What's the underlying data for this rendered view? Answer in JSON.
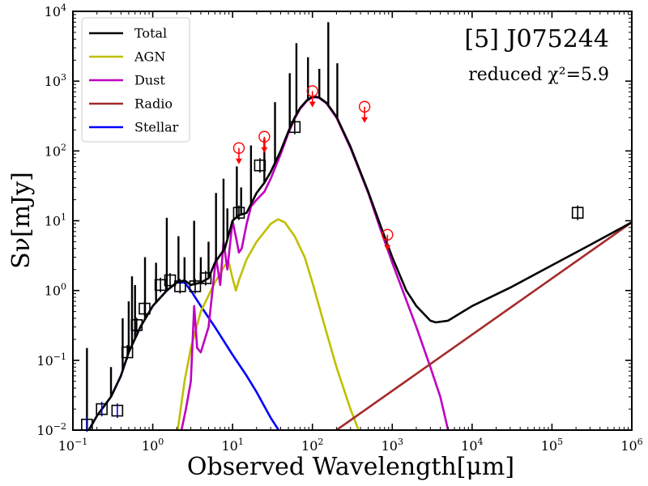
{
  "chart_data": {
    "type": "line",
    "title": "[5] J075244",
    "subtitle": "reduced χ²=5.9",
    "xlabel": "Observed Wavelength[μm]",
    "ylabel": "Sν[mJy]",
    "xscale": "log",
    "yscale": "log",
    "xlim": [
      0.1,
      1000000
    ],
    "ylim": [
      0.01,
      10000
    ],
    "x_ticks": [
      {
        "value": 0.1,
        "mant": "10",
        "exp": "−1"
      },
      {
        "value": 1,
        "mant": "10",
        "exp": "0"
      },
      {
        "value": 10,
        "mant": "10",
        "exp": "1"
      },
      {
        "value": 100,
        "mant": "10",
        "exp": "2"
      },
      {
        "value": 1000,
        "mant": "10",
        "exp": "3"
      },
      {
        "value": 10000,
        "mant": "10",
        "exp": "4"
      },
      {
        "value": 100000,
        "mant": "10",
        "exp": "5"
      },
      {
        "value": 1000000,
        "mant": "10",
        "exp": "6"
      }
    ],
    "y_ticks": [
      {
        "value": 0.01,
        "mant": "10",
        "exp": "−2"
      },
      {
        "value": 0.1,
        "mant": "10",
        "exp": "−1"
      },
      {
        "value": 1,
        "mant": "10",
        "exp": "0"
      },
      {
        "value": 10,
        "mant": "10",
        "exp": "1"
      },
      {
        "value": 100,
        "mant": "10",
        "exp": "2"
      },
      {
        "value": 1000,
        "mant": "10",
        "exp": "3"
      },
      {
        "value": 10000,
        "mant": "10",
        "exp": "4"
      }
    ],
    "legend": {
      "placement": "top-left",
      "entries": [
        {
          "name": "Total",
          "color": "#000000"
        },
        {
          "name": "AGN",
          "color": "#bfbf00"
        },
        {
          "name": "Dust",
          "color": "#bf00bf"
        },
        {
          "name": "Radio",
          "color": "#a52a2a"
        },
        {
          "name": "Stellar",
          "color": "#0000ff"
        }
      ]
    },
    "series": [
      {
        "name": "Stellar",
        "color": "#0000ff",
        "points": [
          [
            0.15,
            0.009
          ],
          [
            0.2,
            0.016
          ],
          [
            0.3,
            0.03
          ],
          [
            0.4,
            0.06
          ],
          [
            0.5,
            0.13
          ],
          [
            0.7,
            0.3
          ],
          [
            1.0,
            0.6
          ],
          [
            1.5,
            1.0
          ],
          [
            2.0,
            1.3
          ],
          [
            2.5,
            1.3
          ],
          [
            3.0,
            1.0
          ],
          [
            4.0,
            0.6
          ],
          [
            6.0,
            0.3
          ],
          [
            10.0,
            0.12
          ],
          [
            15.0,
            0.06
          ],
          [
            20.0,
            0.035
          ],
          [
            30.0,
            0.015
          ],
          [
            40.0,
            0.009
          ]
        ]
      },
      {
        "name": "AGN",
        "color": "#bfbf00",
        "points": [
          [
            2.0,
            0.008
          ],
          [
            2.5,
            0.05
          ],
          [
            3.0,
            0.15
          ],
          [
            4.0,
            0.5
          ],
          [
            6.0,
            1.3
          ],
          [
            8.0,
            2.3
          ],
          [
            9.0,
            2.5
          ],
          [
            10.0,
            1.5
          ],
          [
            11.0,
            1.0
          ],
          [
            12.0,
            1.4
          ],
          [
            15.0,
            2.8
          ],
          [
            20.0,
            5.0
          ],
          [
            30.0,
            9.0
          ],
          [
            37.0,
            10.5
          ],
          [
            45.0,
            9.5
          ],
          [
            60.0,
            6.0
          ],
          [
            80.0,
            3.0
          ],
          [
            100.0,
            1.3
          ],
          [
            150.0,
            0.25
          ],
          [
            200.0,
            0.08
          ],
          [
            300.0,
            0.02
          ],
          [
            450.0,
            0.006
          ]
        ]
      },
      {
        "name": "Dust",
        "color": "#bf00bf",
        "points": [
          [
            2.2,
            0.008
          ],
          [
            2.6,
            0.02
          ],
          [
            3.0,
            0.05
          ],
          [
            3.3,
            0.6
          ],
          [
            3.6,
            0.15
          ],
          [
            4.0,
            0.13
          ],
          [
            5.0,
            0.3
          ],
          [
            6.2,
            3.0
          ],
          [
            7.0,
            1.2
          ],
          [
            7.7,
            5.0
          ],
          [
            8.6,
            2.0
          ],
          [
            10.0,
            10.0
          ],
          [
            11.3,
            5.0
          ],
          [
            12.0,
            3.5
          ],
          [
            13.0,
            4.0
          ],
          [
            15.0,
            9.0
          ],
          [
            17.0,
            16.0
          ],
          [
            20.0,
            20.0
          ],
          [
            25.0,
            26.0
          ],
          [
            30.0,
            40.0
          ],
          [
            40.0,
            90.0
          ],
          [
            50.0,
            180.0
          ],
          [
            60.0,
            290.0
          ],
          [
            70.0,
            400.0
          ],
          [
            85.0,
            520.0
          ],
          [
            100.0,
            590.0
          ],
          [
            120.0,
            580.0
          ],
          [
            150.0,
            480.0
          ],
          [
            200.0,
            300.0
          ],
          [
            300.0,
            110.0
          ],
          [
            500.0,
            25.0
          ],
          [
            700.0,
            8.0
          ],
          [
            1000.0,
            2.5
          ],
          [
            2000.0,
            0.3
          ],
          [
            3000.0,
            0.08
          ],
          [
            4000.0,
            0.03
          ],
          [
            5000.0,
            0.01
          ]
        ]
      },
      {
        "name": "Radio",
        "color": "#a52a2a",
        "points": [
          [
            200.0,
            0.01
          ],
          [
            1000000.0,
            9.5
          ]
        ]
      },
      {
        "name": "Total",
        "color": "#000000",
        "points": [
          [
            0.15,
            0.009
          ],
          [
            0.2,
            0.016
          ],
          [
            0.3,
            0.03
          ],
          [
            0.4,
            0.06
          ],
          [
            0.5,
            0.13
          ],
          [
            0.7,
            0.3
          ],
          [
            1.0,
            0.6
          ],
          [
            1.5,
            1.0
          ],
          [
            2.0,
            1.3
          ],
          [
            2.5,
            1.4
          ],
          [
            3.0,
            1.2
          ],
          [
            4.0,
            1.3
          ],
          [
            5.0,
            1.5
          ],
          [
            6.0,
            2.5
          ],
          [
            8.0,
            4.0
          ],
          [
            10.0,
            10.0
          ],
          [
            12.0,
            12.0
          ],
          [
            15.0,
            13.0
          ],
          [
            20.0,
            25.0
          ],
          [
            25.0,
            35.0
          ],
          [
            30.0,
            50.0
          ],
          [
            40.0,
            100.0
          ],
          [
            50.0,
            190.0
          ],
          [
            60.0,
            300.0
          ],
          [
            70.0,
            410.0
          ],
          [
            85.0,
            530.0
          ],
          [
            100.0,
            600.0
          ],
          [
            120.0,
            590.0
          ],
          [
            150.0,
            490.0
          ],
          [
            200.0,
            310.0
          ],
          [
            300.0,
            115.0
          ],
          [
            500.0,
            26.0
          ],
          [
            700.0,
            9.0
          ],
          [
            1000.0,
            3.0
          ],
          [
            1500.0,
            1.0
          ],
          [
            2000.0,
            0.6
          ],
          [
            3000.0,
            0.37
          ],
          [
            3500.0,
            0.35
          ],
          [
            5000.0,
            0.37
          ],
          [
            10000.0,
            0.6
          ],
          [
            30000.0,
            1.1
          ],
          [
            100000.0,
            2.3
          ],
          [
            300000.0,
            4.5
          ],
          [
            1000000.0,
            9.5
          ]
        ]
      }
    ],
    "emission_spikes": [
      [
        0.15,
        0.15
      ],
      [
        0.3,
        0.08
      ],
      [
        0.42,
        0.4
      ],
      [
        0.5,
        0.7
      ],
      [
        0.55,
        1.6
      ],
      [
        0.6,
        1.2
      ],
      [
        0.8,
        3.0
      ],
      [
        1.1,
        2.5
      ],
      [
        1.5,
        11.0
      ],
      [
        2.1,
        6.0
      ],
      [
        2.5,
        3.0
      ],
      [
        3.3,
        10.0
      ],
      [
        4.0,
        3.0
      ],
      [
        5.0,
        5.0
      ],
      [
        6.2,
        25.0
      ],
      [
        7.7,
        40.0
      ],
      [
        8.6,
        15.0
      ],
      [
        11.3,
        60.0
      ],
      [
        12.8,
        30.0
      ],
      [
        17.0,
        120.0
      ],
      [
        25.0,
        150.0
      ],
      [
        34.0,
        500.0
      ],
      [
        52.0,
        1300.0
      ],
      [
        63.0,
        3500.0
      ],
      [
        88.0,
        2200.0
      ],
      [
        122.0,
        1500.0
      ],
      [
        158.0,
        7000.0
      ],
      [
        205.0,
        1800.0
      ]
    ],
    "observed_points": [
      {
        "x": 0.15,
        "y": 0.012
      },
      {
        "x": 0.23,
        "y": 0.02
      },
      {
        "x": 0.36,
        "y": 0.019
      },
      {
        "x": 0.48,
        "y": 0.13
      },
      {
        "x": 0.63,
        "y": 0.32
      },
      {
        "x": 0.79,
        "y": 0.55
      },
      {
        "x": 1.25,
        "y": 1.2
      },
      {
        "x": 1.65,
        "y": 1.4
      },
      {
        "x": 2.2,
        "y": 1.15
      },
      {
        "x": 3.4,
        "y": 1.15
      },
      {
        "x": 4.6,
        "y": 1.5
      },
      {
        "x": 12.0,
        "y": 13.0
      },
      {
        "x": 22.0,
        "y": 62.0
      },
      {
        "x": 60.0,
        "y": 220.0
      },
      {
        "x": 210000.0,
        "y": 13.0
      }
    ],
    "upper_limits": [
      {
        "x": 12.0,
        "y": 110.0
      },
      {
        "x": 25.0,
        "y": 160.0
      },
      {
        "x": 100.0,
        "y": 720.0
      },
      {
        "x": 450.0,
        "y": 430.0
      },
      {
        "x": 870.0,
        "y": 6.3
      }
    ]
  }
}
